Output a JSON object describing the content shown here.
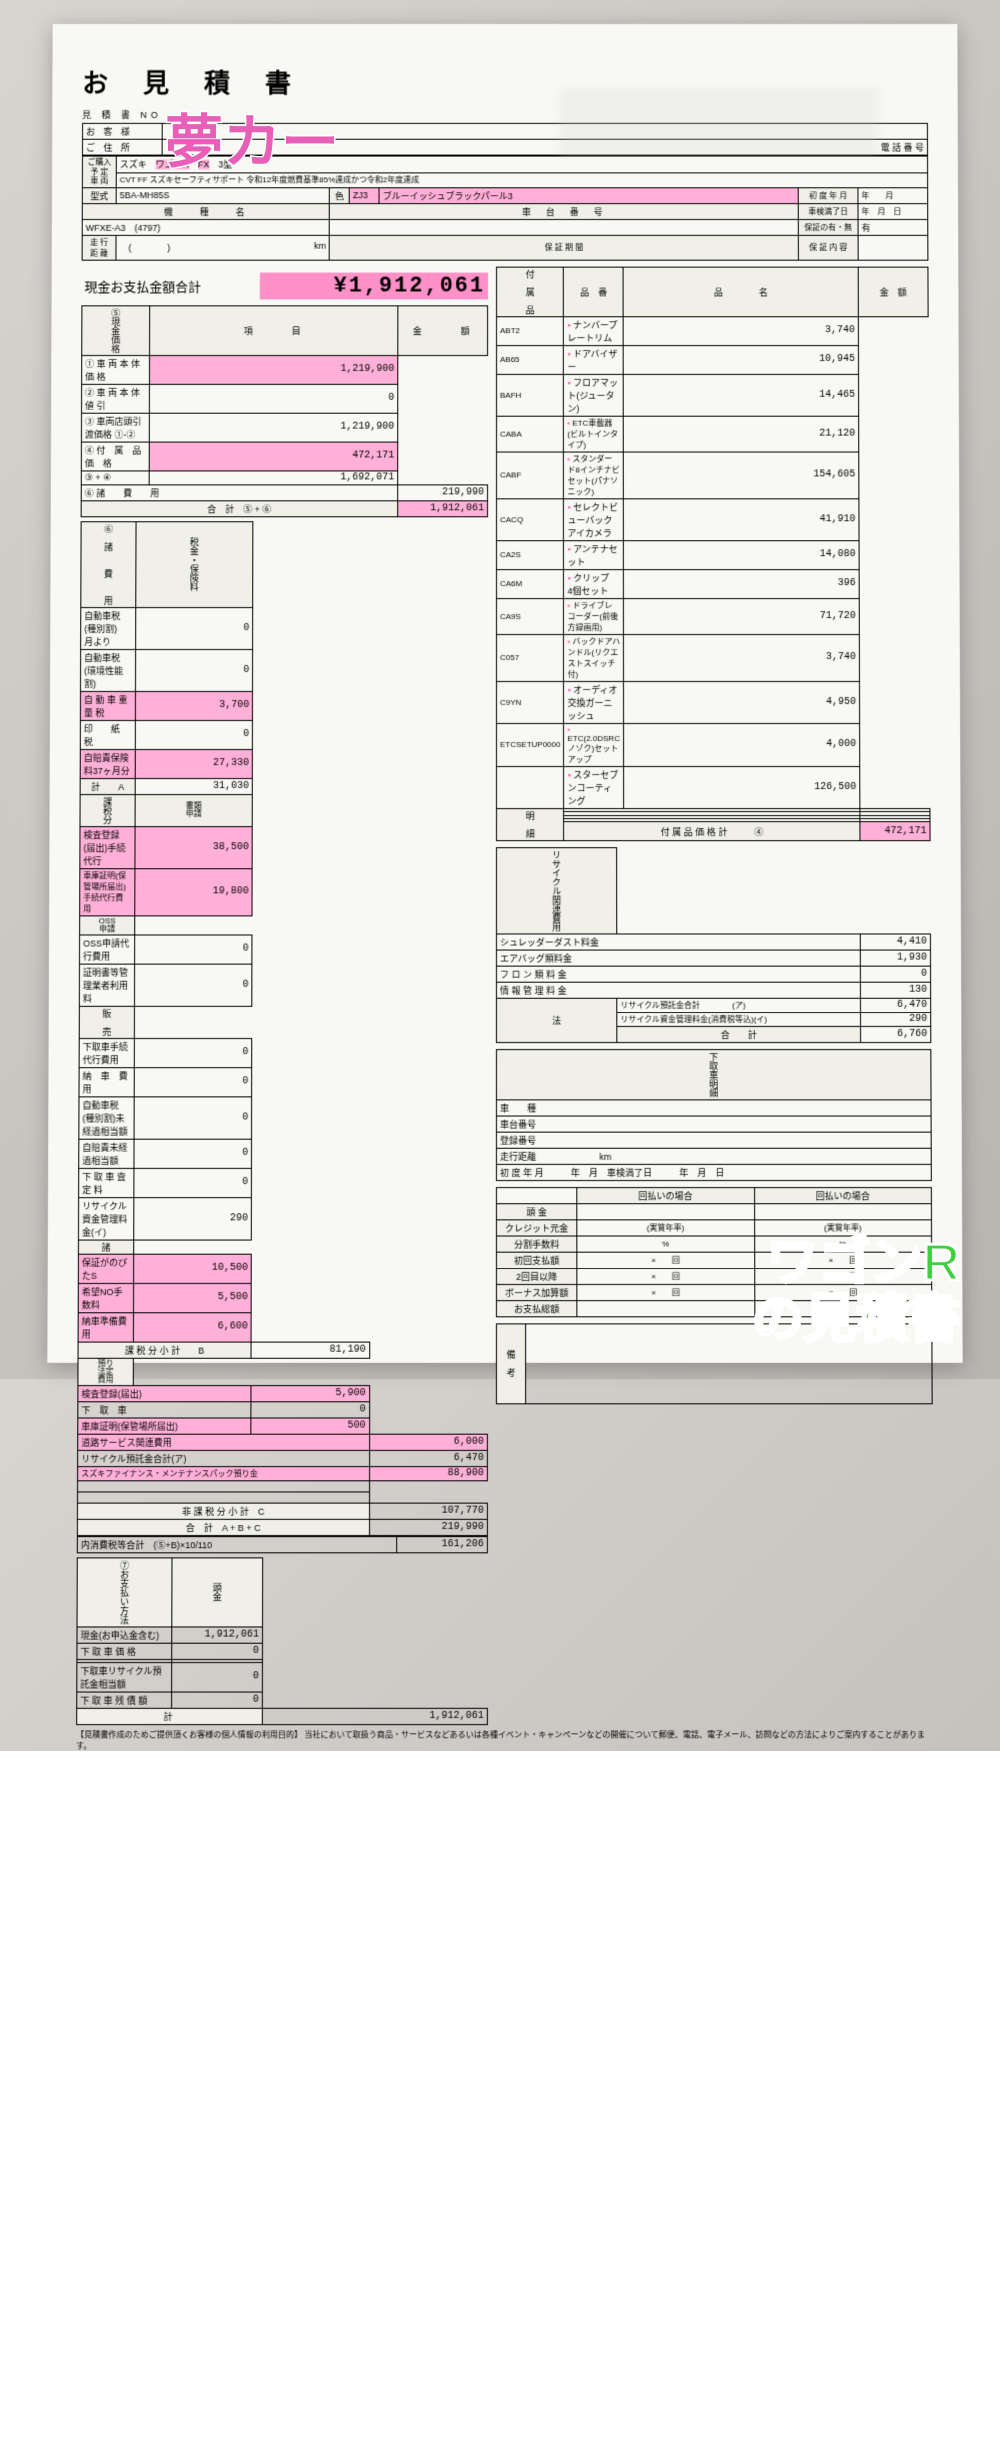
{
  "colors": {
    "highlight": "#ffb0d8",
    "accent_pink": "#e85fb8",
    "accent_green": "#3fcf3f",
    "paper": "#f8f8f4",
    "border": "#000000"
  },
  "overlay": {
    "top": "夢カー",
    "bottom_line1": "ワゴンR",
    "bottom_line2": "の見積書"
  },
  "title": "お 見 積 書",
  "quote_no_label": "見 積 書 NO",
  "customer_label": "お 客 様",
  "address_label": "ご 住 所",
  "phone_label": "電 話 番 号",
  "vehicle": {
    "purchase_label": "ご購入\n予 定\n車 両",
    "maker": "スズキ",
    "model": "ワゴンR",
    "grade": "FX",
    "type3": "3型",
    "trans": "CVT FF スズキセーフティサポート 令和12年度燃費基準85%達成かつ令和2年度達成",
    "type_code_label": "型式",
    "type_code": "5BA-MH85S",
    "color_label": "色",
    "color_code": "ZJ3",
    "color_name": "ブルーイッシュブラックパール3",
    "first_reg_label": "初 度 年 月",
    "first_reg_val": "年　　月",
    "shaken_label": "車検満了日",
    "shaken_val": "年　月　日",
    "model_name_label": "機　　種　　名",
    "chassis_label": "車　台　番　号",
    "warranty_label": "保証の有・無",
    "warranty_val": "有",
    "model_name": "WFXE-A3　(4797)",
    "warranty_content_label": "保 証 内 容",
    "mileage_label": "走 行 距 離",
    "mileage_unit": "km",
    "warranty_period_label": "保 証 期 間"
  },
  "total": {
    "label": "現金お支払金額合計",
    "value": "¥1,912,061"
  },
  "breakdown": {
    "header_item": "項　　　目",
    "header_amount": "金　　　額",
    "side5": "⑤現金価格",
    "rows5": [
      {
        "no": "①",
        "label": "車 両 本 体 価 格",
        "val": "1,219,900"
      },
      {
        "no": "②",
        "label": "車 両 本 体 値 引",
        "val": "0"
      },
      {
        "no": "③",
        "label": "車両店頭引渡価格 ①-②",
        "val": "1,219,900"
      },
      {
        "no": "④",
        "label": "付　属　品　価　格",
        "val": "472,171"
      },
      {
        "no": "",
        "label": "③ + ④",
        "val": "1,692,071"
      }
    ],
    "row6": {
      "no": "⑥",
      "label": "諸　　費　　用",
      "val": "219,990"
    },
    "subtotal56": {
      "label": "合　計　⑤ + ⑥",
      "val": "1,912,061"
    }
  },
  "fees6": {
    "side_label": "⑥　諸　　費　　用",
    "tax_ins_label": "税金・保険料",
    "tax_rows": [
      {
        "label": "自動車税(種別割)　　月より",
        "val": "0",
        "hl": false
      },
      {
        "label": "自動車税(環境性能割)",
        "val": "0",
        "hl": false
      },
      {
        "label": "自 動 車 重 量 税",
        "val": "3,700",
        "hl": true
      },
      {
        "label": "印　　紙　　税",
        "val": "0",
        "hl": false
      },
      {
        "label": "自賠責保険料37ヶ月分",
        "val": "27,330",
        "hl": true
      }
    ],
    "tax_subtotal": {
      "label": "計　　A",
      "val": "31,030"
    },
    "taxable_side": "課税分",
    "doc_label": "書類\n申請",
    "doc_rows": [
      {
        "label": "検査登録(届出)手続代行",
        "val": "38,500",
        "hl": true
      },
      {
        "label": "車庫証明(保管場所届出)手続代行費用",
        "val": "19,800",
        "hl": true,
        "small": true
      }
    ],
    "oss_label": "OSS\n申請",
    "oss_rows": [
      {
        "label": "OSS申請代行費用",
        "val": "0"
      },
      {
        "label": "証明書等管理業者利用料",
        "val": "0"
      }
    ],
    "sale_label": "販　売",
    "sale_rows": [
      {
        "label": "下取車手続代行費用",
        "val": "0"
      },
      {
        "label": "納　車　費　用",
        "val": "0"
      },
      {
        "label": "自動車税(種別割)未経過相当額",
        "val": "0"
      },
      {
        "label": "自賠責未経過相当額",
        "val": "0"
      },
      {
        "label": "下 取 車 査 定 料",
        "val": "0"
      },
      {
        "label": "リサイクル資金管理料金(イ)",
        "val": "290"
      }
    ],
    "misc_label": "諸",
    "misc_rows": [
      {
        "label": "保証がのびたS",
        "val": "10,500",
        "hl": true
      },
      {
        "label": "希望NO手数料",
        "val": "5,500",
        "hl": true
      },
      {
        "label": "納車準備費用",
        "val": "6,600",
        "hl": true
      }
    ],
    "taxable_subtotal": {
      "label": "課 税 分 小 計　　B",
      "val": "81,190"
    },
    "deposit_label": "預り法定\n費用",
    "deposit_rows": [
      {
        "label": "検査登録(届出)",
        "val": "5,900",
        "hl": true
      },
      {
        "label": "下　取　車",
        "val": "0"
      },
      {
        "label": "車庫証明(保管場所届出)",
        "val": "500",
        "hl": true
      }
    ],
    "nontax_rows": [
      {
        "label": "道路サービス関連費用",
        "val": "6,000",
        "hl": true
      },
      {
        "label": "リサイクル預託金合計(ア)",
        "val": "6,470"
      },
      {
        "label": "スズキファイナンス・メンテナンスパック預り金",
        "val": "88,900",
        "hl": true,
        "small": true
      }
    ],
    "blank_rows": 2,
    "nontax_subtotal": {
      "label": "非 課 税 分 小 計　C",
      "val": "107,770"
    },
    "abc_total": {
      "label": "合　計　A + B + C",
      "val": "219,990"
    }
  },
  "tax_line": {
    "label": "内消費税等合計　(⑤+B)×10/110",
    "val": "161,206"
  },
  "payment": {
    "side": "⑦お支払い方法",
    "down_label": "頭金",
    "rows": [
      {
        "label": "現金(お申込金含む)",
        "val": "1,912,061"
      },
      {
        "label": "下 取 車 価 格",
        "val": "0"
      },
      {
        "label": "",
        "val": ""
      },
      {
        "label": "下取車リサイクル預託金相当額",
        "val": "0"
      },
      {
        "label": "下 取 車 残 債 額",
        "val": "0"
      }
    ],
    "total": {
      "label": "計",
      "val": "1,912,061"
    }
  },
  "accessories": {
    "header": [
      "品　番",
      "品　　　　名",
      "金　額"
    ],
    "side": "付　属　品",
    "rows": [
      {
        "code": "ABT2",
        "name": "ナンバープレートリム",
        "val": "3,740"
      },
      {
        "code": "AB65",
        "name": "ドアバイザー",
        "val": "10,945"
      },
      {
        "code": "BAFH",
        "name": "フロアマット(ジュータン)",
        "val": "14,465"
      },
      {
        "code": "CABA",
        "name": "ETC車載器(ビルトインタイプ)",
        "val": "21,120",
        "small": true
      },
      {
        "code": "CABF",
        "name": "スタンダード8インチナビセット(パナソニック)",
        "val": "154,605",
        "small": true
      },
      {
        "code": "CACQ",
        "name": "セレクトビューバックアイカメラ",
        "val": "41,910"
      },
      {
        "code": "CA2S",
        "name": "アンテナセット",
        "val": "14,080"
      },
      {
        "code": "CA6M",
        "name": "クリップ　4個セット",
        "val": "396"
      },
      {
        "code": "CA9S",
        "name": "ドライブレコーダー(前後方録画用)",
        "val": "71,720",
        "small": true
      },
      {
        "code": "C057",
        "name": "バックドアハンドル(リクエストスイッチ付)",
        "val": "3,740",
        "small": true
      },
      {
        "code": "C9YN",
        "name": "オーディオ交換ガーニッシュ",
        "val": "4,950"
      },
      {
        "code": "ETCSETUP0000",
        "name": "ETC(2.0DSRCノゾク)セットアップ",
        "val": "4,000",
        "small": true
      },
      {
        "code": "",
        "name": "スターセブンコーティング",
        "val": "126,500"
      }
    ],
    "detail_label": "明　細",
    "blank_rows": 4,
    "total": {
      "label": "付 属 品 価 格 計　　　④",
      "val": "472,171"
    }
  },
  "recycle": {
    "side": "リサイクル関連費用",
    "law_label": "法",
    "rows": [
      {
        "label": "シュレッダーダスト料金",
        "val": "4,410"
      },
      {
        "label": "エアバッグ類料金",
        "val": "1,930"
      },
      {
        "label": "フ ロ ン 類 料 金",
        "val": "0"
      },
      {
        "label": "情 報 管 理 料 金",
        "val": "130"
      }
    ],
    "sub1": {
      "label": "リサイクル預託金合計　　　　(ア)",
      "val": "6,470"
    },
    "sub2": {
      "label": "リサイクル資金管理料金(消費税等込)(イ)",
      "val": "290",
      "small": true
    },
    "total": {
      "label": "合　　計",
      "val": "6,760"
    }
  },
  "tradein": {
    "side": "下取車明細",
    "rows": [
      "車　　種",
      "車台番号",
      "登録番号",
      "走行距離　　　　　　　km",
      "初 度 年 月　　　年　月　車検満了日　　　年　月　日"
    ]
  },
  "loan": {
    "header": [
      "",
      "回払いの場合",
      "回払いの場合"
    ],
    "rows": [
      {
        "label": "頭 金",
        "a": "",
        "b": ""
      },
      {
        "label": "クレジット元金",
        "a": "(実質年率)",
        "b": "(実質年率)"
      },
      {
        "label": "分割手数料",
        "a": "%",
        "b": "%"
      },
      {
        "label": "初回支払額",
        "a": "×　　回",
        "b": "×　　回"
      },
      {
        "label": "2回目以降",
        "a": "×　　回",
        "b": "×　　回"
      },
      {
        "label": "ボーナス加算額",
        "a": "×　　回",
        "b": "×　　回"
      },
      {
        "label": "お支払総額",
        "a": "",
        "b": ""
      }
    ]
  },
  "remarks_label": "備　考",
  "footnote": "【見積書作成のためご提供頂くお客様の個人情報の利用目的】\n当社において取扱う商品・サービスなどあるいは各種イベント・キャンペーンなどの開催について郵便、電話、電子メール、訪問などの方法によりご案内することがあります。"
}
